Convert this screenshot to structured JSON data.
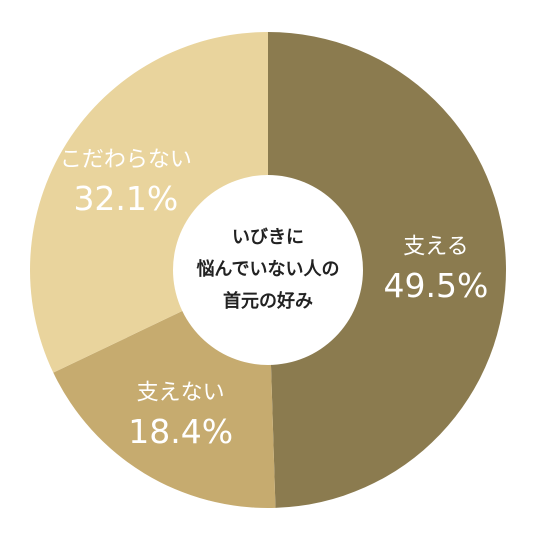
{
  "chart_data": {
    "type": "donut",
    "center_text": [
      "いびきに",
      "悩んでいない人の",
      "首元の好み"
    ],
    "categories": [
      "支える",
      "支えない",
      "こだわらない"
    ],
    "values": [
      49.5,
      18.4,
      32.1
    ],
    "value_labels": [
      "49.5%",
      "18.4%",
      "32.1%"
    ],
    "colors": [
      "#8b7b4f",
      "#c6ab6f",
      "#e9d49d"
    ]
  }
}
